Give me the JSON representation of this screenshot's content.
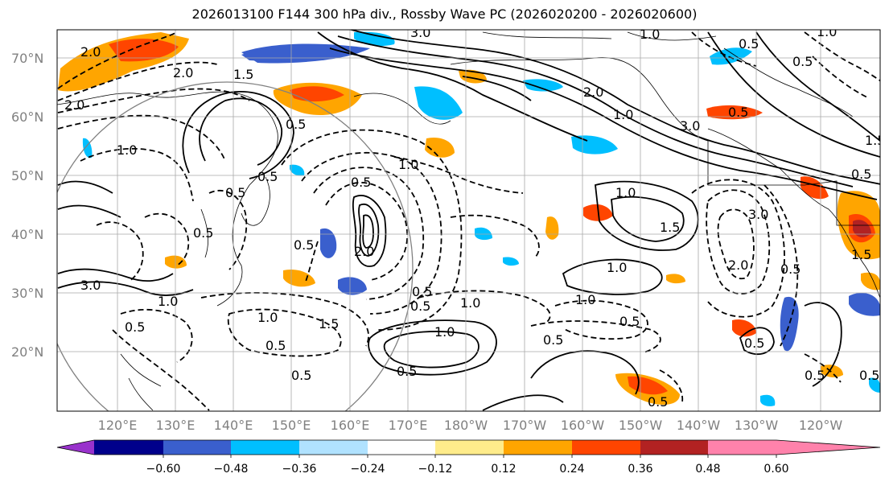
{
  "title": "2026013100 F144 300 hPa div., Rossby Wave PC (2026020200 - 2026020600)",
  "lat_labels": [
    "70°N",
    "60°N",
    "50°N",
    "40°N",
    "30°N",
    "20°N"
  ],
  "lon_labels": [
    "120°E",
    "130°E",
    "140°E",
    "150°E",
    "160°E",
    "170°E",
    "180°W",
    "170°W",
    "160°W",
    "150°W",
    "140°W",
    "130°W",
    "120°W"
  ],
  "colorbar": {
    "colors": [
      "#9932cc",
      "#00008b",
      "#3a5fcd",
      "#00bfff",
      "#b0e2ff",
      "#ffffff",
      "#ffec8b",
      "#ffa500",
      "#ff4500",
      "#b22222",
      "#ff82ab"
    ],
    "ticks": [
      "−0.60",
      "−0.48",
      "−0.36",
      "−0.24",
      "−0.12",
      "0.12",
      "0.24",
      "0.36",
      "0.48",
      "0.60"
    ]
  },
  "contour_labels": [
    "3.0",
    "1.0",
    "0.5",
    "0.5",
    "2.0",
    "1.5",
    "2.0",
    "2.0",
    "1.0",
    "0.5",
    "0.5",
    "1.0",
    "1.5",
    "0.5",
    "1.0",
    "0.5",
    "1.5",
    "2.0",
    "3.0",
    "1.0",
    "0.5",
    "0.5",
    "1.0",
    "3.0",
    "0.5",
    "1.0",
    "0.5",
    "0.5",
    "1.0",
    "1.0",
    "0.5",
    "0.5",
    "0.5",
    "1.5",
    "2.0",
    "0.5",
    "1.0",
    "0.5",
    "0.5",
    "0.5",
    "0.5",
    "0.5",
    "0.5",
    "1.5",
    "0.5",
    "1.0",
    "1.0",
    "3.0",
    "2.0",
    "0.5"
  ]
}
